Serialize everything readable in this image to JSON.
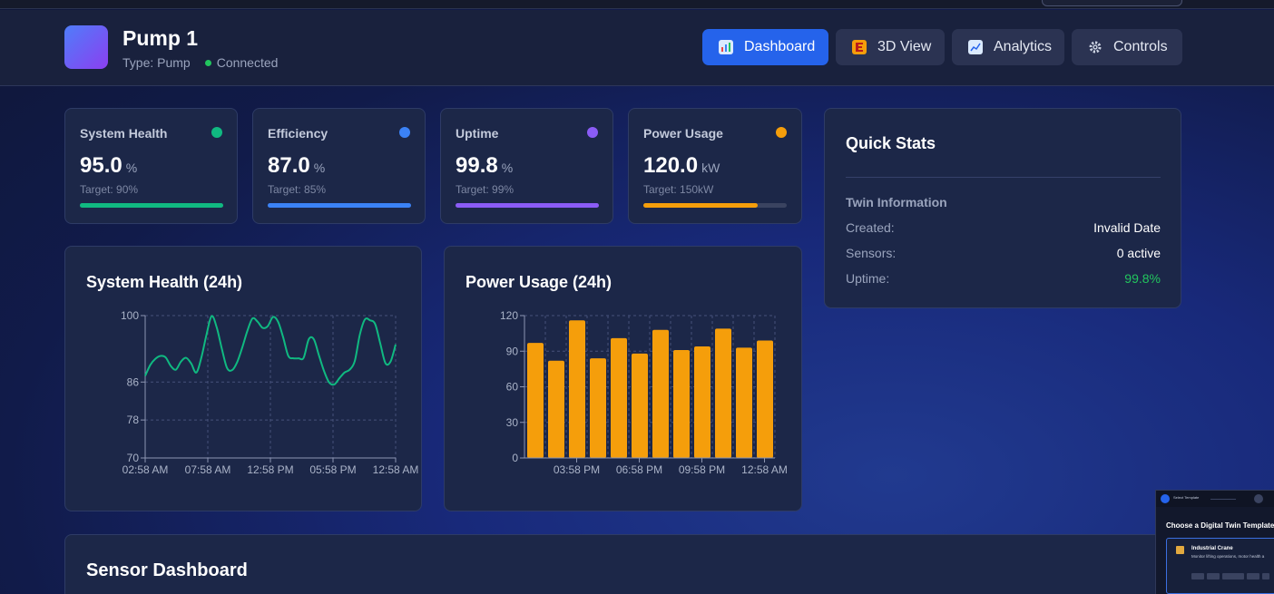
{
  "header": {
    "title": "Pump 1",
    "type_label": "Type: Pump",
    "status": "Connected",
    "nav": [
      {
        "label": "Dashboard",
        "icon": "chart-icon",
        "active": true
      },
      {
        "label": "3D View",
        "icon": "cube-icon",
        "active": false
      },
      {
        "label": "Analytics",
        "icon": "trend-icon",
        "active": false
      },
      {
        "label": "Controls",
        "icon": "gear-icon",
        "active": false
      }
    ]
  },
  "metrics": [
    {
      "label": "System Health",
      "value": "95.0",
      "unit": "%",
      "target": "Target: 90%",
      "color": "#10b981",
      "progress": 1.0
    },
    {
      "label": "Efficiency",
      "value": "87.0",
      "unit": "%",
      "target": "Target: 85%",
      "color": "#3b82f6",
      "progress": 1.0
    },
    {
      "label": "Uptime",
      "value": "99.8",
      "unit": "%",
      "target": "Target: 99%",
      "color": "#8b5cf6",
      "progress": 1.0
    },
    {
      "label": "Power Usage",
      "value": "120.0",
      "unit": "kW",
      "target": "Target: 150kW",
      "color": "#f59e0b",
      "progress": 0.8
    }
  ],
  "quick_stats": {
    "title": "Quick Stats",
    "section": "Twin Information",
    "rows": [
      {
        "key": "Created:",
        "value": "Invalid Date"
      },
      {
        "key": "Sensors:",
        "value": "0 active"
      },
      {
        "key": "Uptime:",
        "value": "99.8%"
      }
    ]
  },
  "sensor_dashboard": {
    "title": "Sensor Dashboard"
  },
  "template_preview": {
    "step_label": "Select Template",
    "heading": "Choose a Digital Twin Template",
    "card_name": "Industrial Crane",
    "card_desc": "Monitor lifting operations, motor health a"
  },
  "chart_data": [
    {
      "type": "line",
      "title": "System Health (24h)",
      "color": "#10b981",
      "ylim": [
        70,
        100
      ],
      "yticks": [
        70,
        78,
        86,
        100
      ],
      "xtick_labels": [
        "02:58 AM",
        "07:58 AM",
        "12:58 PM",
        "05:58 PM",
        "12:58 AM"
      ],
      "values": [
        87.3,
        89.6,
        90.9,
        91.5,
        91.2,
        89.4,
        88.6,
        90.3,
        91.1,
        89.9,
        88.0,
        91.2,
        96.0,
        99.9,
        97.5,
        93.0,
        89.0,
        88.5,
        90.2,
        93.3,
        96.8,
        99.4,
        98.7,
        97.4,
        97.8,
        99.7,
        98.7,
        95.4,
        91.5,
        91.0,
        91.0,
        91.1,
        95.0,
        95.0,
        91.6,
        88.3,
        85.9,
        85.5,
        86.8,
        88.0,
        88.6,
        90.4,
        96.0,
        99.2,
        99.0,
        98.2,
        94.1,
        90.0,
        90.3,
        93.9
      ]
    },
    {
      "type": "bar",
      "title": "Power Usage (24h)",
      "color": "#f59e0b",
      "ylim": [
        0,
        120
      ],
      "yticks": [
        0,
        30,
        60,
        90,
        120
      ],
      "xtick_labels": [
        "03:58 PM",
        "06:58 PM",
        "09:58 PM",
        "12:58 AM"
      ],
      "values": [
        97,
        82,
        116,
        84,
        101,
        88,
        108,
        91,
        94,
        109,
        93,
        99
      ]
    }
  ]
}
